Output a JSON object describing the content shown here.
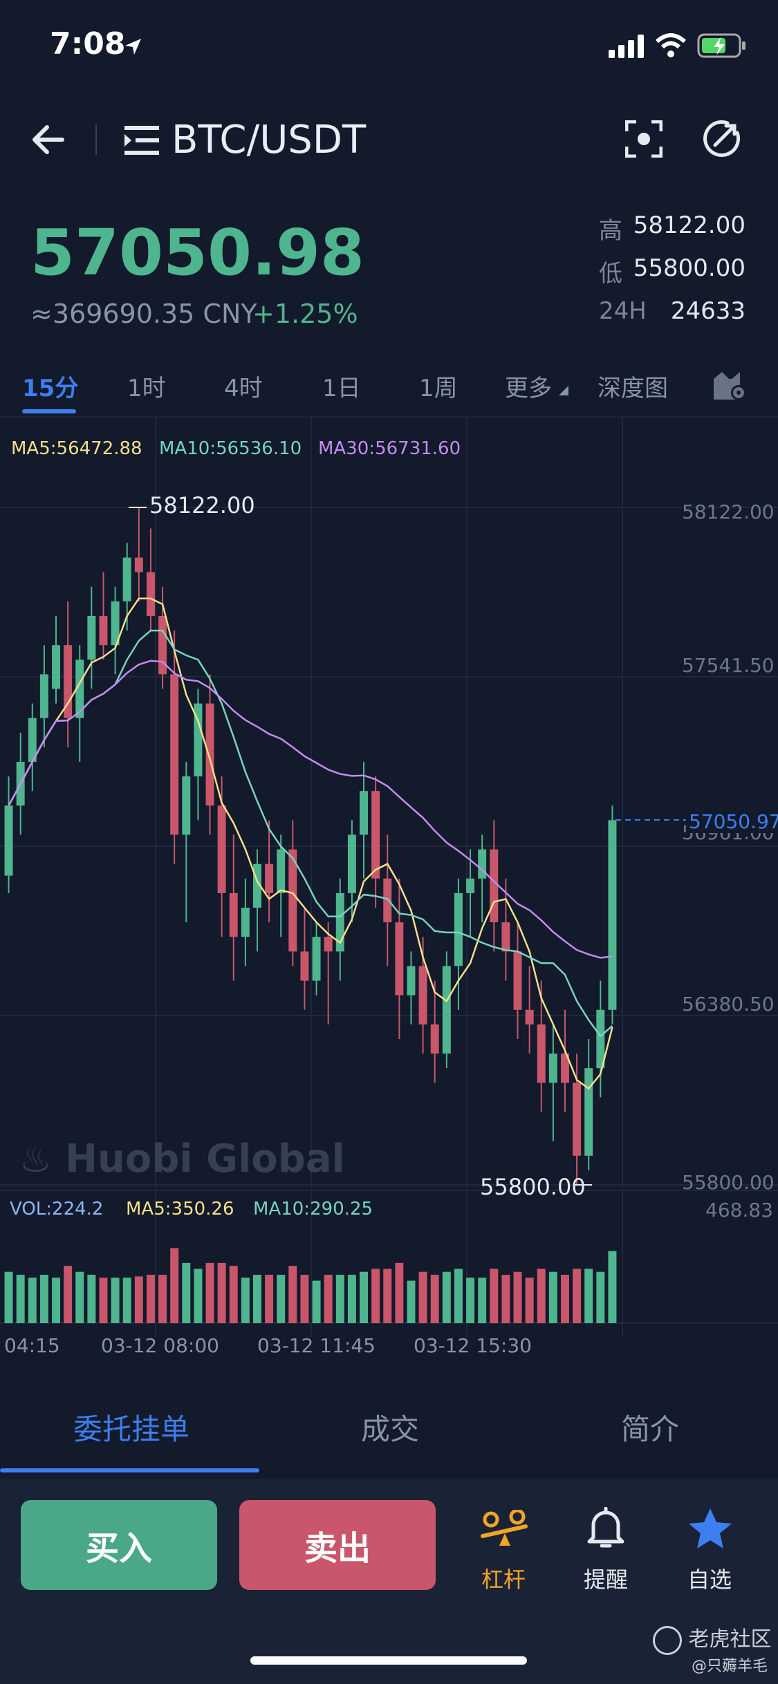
{
  "status_bar": {
    "time": "7:08"
  },
  "header": {
    "pair": "BTC/USDT"
  },
  "ticker": {
    "price": "57050.98",
    "cny": "≈369690.35 CNY",
    "change": "+1.25%",
    "high_label": "高",
    "high": "58122.00",
    "low_label": "低",
    "low": "55800.00",
    "vol_label": "24H",
    "vol": "24633"
  },
  "tabs": [
    "15分",
    "1时",
    "4时",
    "1日",
    "1周",
    "更多",
    "深度图"
  ],
  "ma_legend": {
    "ma5": "MA5:56472.88",
    "ma10": "MA10:56536.10",
    "ma30": "MA30:56731.60"
  },
  "axis": {
    "y_ticks": [
      "58122.00",
      "57541.50",
      "56961.00",
      "56380.50",
      "55800.00"
    ],
    "current_price_tag": "57050.97",
    "high_marker": "58122.00",
    "low_marker": "55800.00",
    "vol_max": "468.83",
    "x_ticks": [
      "04:15",
      "03-12 08:00",
      "03-12 11:45",
      "03-12 15:30"
    ]
  },
  "watermark": "Huobi Global",
  "vol_legend": {
    "vol": "VOL:224.2",
    "ma5": "MA5:350.26",
    "ma10": "MA10:290.25"
  },
  "bottom_tabs": [
    "委托挂单",
    "成交",
    "简介"
  ],
  "actions": {
    "buy": "买入",
    "sell": "卖出",
    "leverage": "杠杆",
    "alert": "提醒",
    "favorite": "自选"
  },
  "community_watermark": {
    "name": "老虎社区",
    "user": "@只薅羊毛"
  },
  "colors": {
    "up": "#4fb58e",
    "down": "#c9566a",
    "accent": "#3d7ff0",
    "ma5": "#f5df8a",
    "ma10": "#79d3be",
    "ma30": "#c48cf0"
  },
  "chart_data": {
    "type": "candlestick",
    "ylim": [
      55800.0,
      58122.0
    ],
    "candles": [
      {
        "o": 56860,
        "h": 57200,
        "l": 56800,
        "c": 57100
      },
      {
        "o": 57100,
        "h": 57350,
        "l": 57000,
        "c": 57250
      },
      {
        "o": 57250,
        "h": 57450,
        "l": 57150,
        "c": 57400
      },
      {
        "o": 57400,
        "h": 57650,
        "l": 57300,
        "c": 57550
      },
      {
        "o": 57500,
        "h": 57750,
        "l": 57450,
        "c": 57650
      },
      {
        "o": 57650,
        "h": 57800,
        "l": 57300,
        "c": 57400
      },
      {
        "o": 57400,
        "h": 57650,
        "l": 57250,
        "c": 57600
      },
      {
        "o": 57600,
        "h": 57850,
        "l": 57500,
        "c": 57750
      },
      {
        "o": 57750,
        "h": 57900,
        "l": 57600,
        "c": 57650
      },
      {
        "o": 57650,
        "h": 57850,
        "l": 57550,
        "c": 57800
      },
      {
        "o": 57800,
        "h": 58000,
        "l": 57700,
        "c": 57950
      },
      {
        "o": 57950,
        "h": 58122,
        "l": 57800,
        "c": 57900
      },
      {
        "o": 57900,
        "h": 58050,
        "l": 57700,
        "c": 57750
      },
      {
        "o": 57750,
        "h": 57850,
        "l": 57500,
        "c": 57550
      },
      {
        "o": 57550,
        "h": 57700,
        "l": 56900,
        "c": 57000
      },
      {
        "o": 57000,
        "h": 57250,
        "l": 56700,
        "c": 57200
      },
      {
        "o": 57200,
        "h": 57500,
        "l": 57050,
        "c": 57450
      },
      {
        "o": 57450,
        "h": 57550,
        "l": 57000,
        "c": 57100
      },
      {
        "o": 57100,
        "h": 57200,
        "l": 56650,
        "c": 56800
      },
      {
        "o": 56800,
        "h": 57000,
        "l": 56500,
        "c": 56650
      },
      {
        "o": 56650,
        "h": 56850,
        "l": 56550,
        "c": 56750
      },
      {
        "o": 56750,
        "h": 56950,
        "l": 56600,
        "c": 56900
      },
      {
        "o": 56900,
        "h": 57050,
        "l": 56700,
        "c": 56800
      },
      {
        "o": 56800,
        "h": 57000,
        "l": 56650,
        "c": 56950
      },
      {
        "o": 56950,
        "h": 57050,
        "l": 56550,
        "c": 56600
      },
      {
        "o": 56600,
        "h": 56750,
        "l": 56400,
        "c": 56500
      },
      {
        "o": 56500,
        "h": 56700,
        "l": 56450,
        "c": 56650
      },
      {
        "o": 56650,
        "h": 56700,
        "l": 56350,
        "c": 56600
      },
      {
        "o": 56600,
        "h": 56850,
        "l": 56500,
        "c": 56800
      },
      {
        "o": 56800,
        "h": 57050,
        "l": 56700,
        "c": 57000
      },
      {
        "o": 57000,
        "h": 57250,
        "l": 56850,
        "c": 57150
      },
      {
        "o": 57150,
        "h": 57200,
        "l": 56750,
        "c": 56850
      },
      {
        "o": 56850,
        "h": 57000,
        "l": 56550,
        "c": 56700
      },
      {
        "o": 56700,
        "h": 56850,
        "l": 56300,
        "c": 56450
      },
      {
        "o": 56450,
        "h": 56600,
        "l": 56350,
        "c": 56550
      },
      {
        "o": 56550,
        "h": 56650,
        "l": 56250,
        "c": 56350
      },
      {
        "o": 56350,
        "h": 56500,
        "l": 56150,
        "c": 56250
      },
      {
        "o": 56250,
        "h": 56600,
        "l": 56200,
        "c": 56550
      },
      {
        "o": 56550,
        "h": 56850,
        "l": 56400,
        "c": 56800
      },
      {
        "o": 56800,
        "h": 56950,
        "l": 56650,
        "c": 56850
      },
      {
        "o": 56850,
        "h": 57000,
        "l": 56700,
        "c": 56950
      },
      {
        "o": 56950,
        "h": 57050,
        "l": 56600,
        "c": 56700
      },
      {
        "o": 56700,
        "h": 56850,
        "l": 56500,
        "c": 56600
      },
      {
        "o": 56600,
        "h": 56700,
        "l": 56300,
        "c": 56400
      },
      {
        "o": 56400,
        "h": 56550,
        "l": 56250,
        "c": 56350
      },
      {
        "o": 56350,
        "h": 56500,
        "l": 56050,
        "c": 56150
      },
      {
        "o": 56150,
        "h": 56350,
        "l": 55950,
        "c": 56250
      },
      {
        "o": 56250,
        "h": 56400,
        "l": 56050,
        "c": 56150
      },
      {
        "o": 56150,
        "h": 56250,
        "l": 55800,
        "c": 55900
      },
      {
        "o": 55900,
        "h": 56300,
        "l": 55850,
        "c": 56200
      },
      {
        "o": 56200,
        "h": 56500,
        "l": 56100,
        "c": 56400
      },
      {
        "o": 56400,
        "h": 57100,
        "l": 56350,
        "c": 57050
      }
    ]
  }
}
